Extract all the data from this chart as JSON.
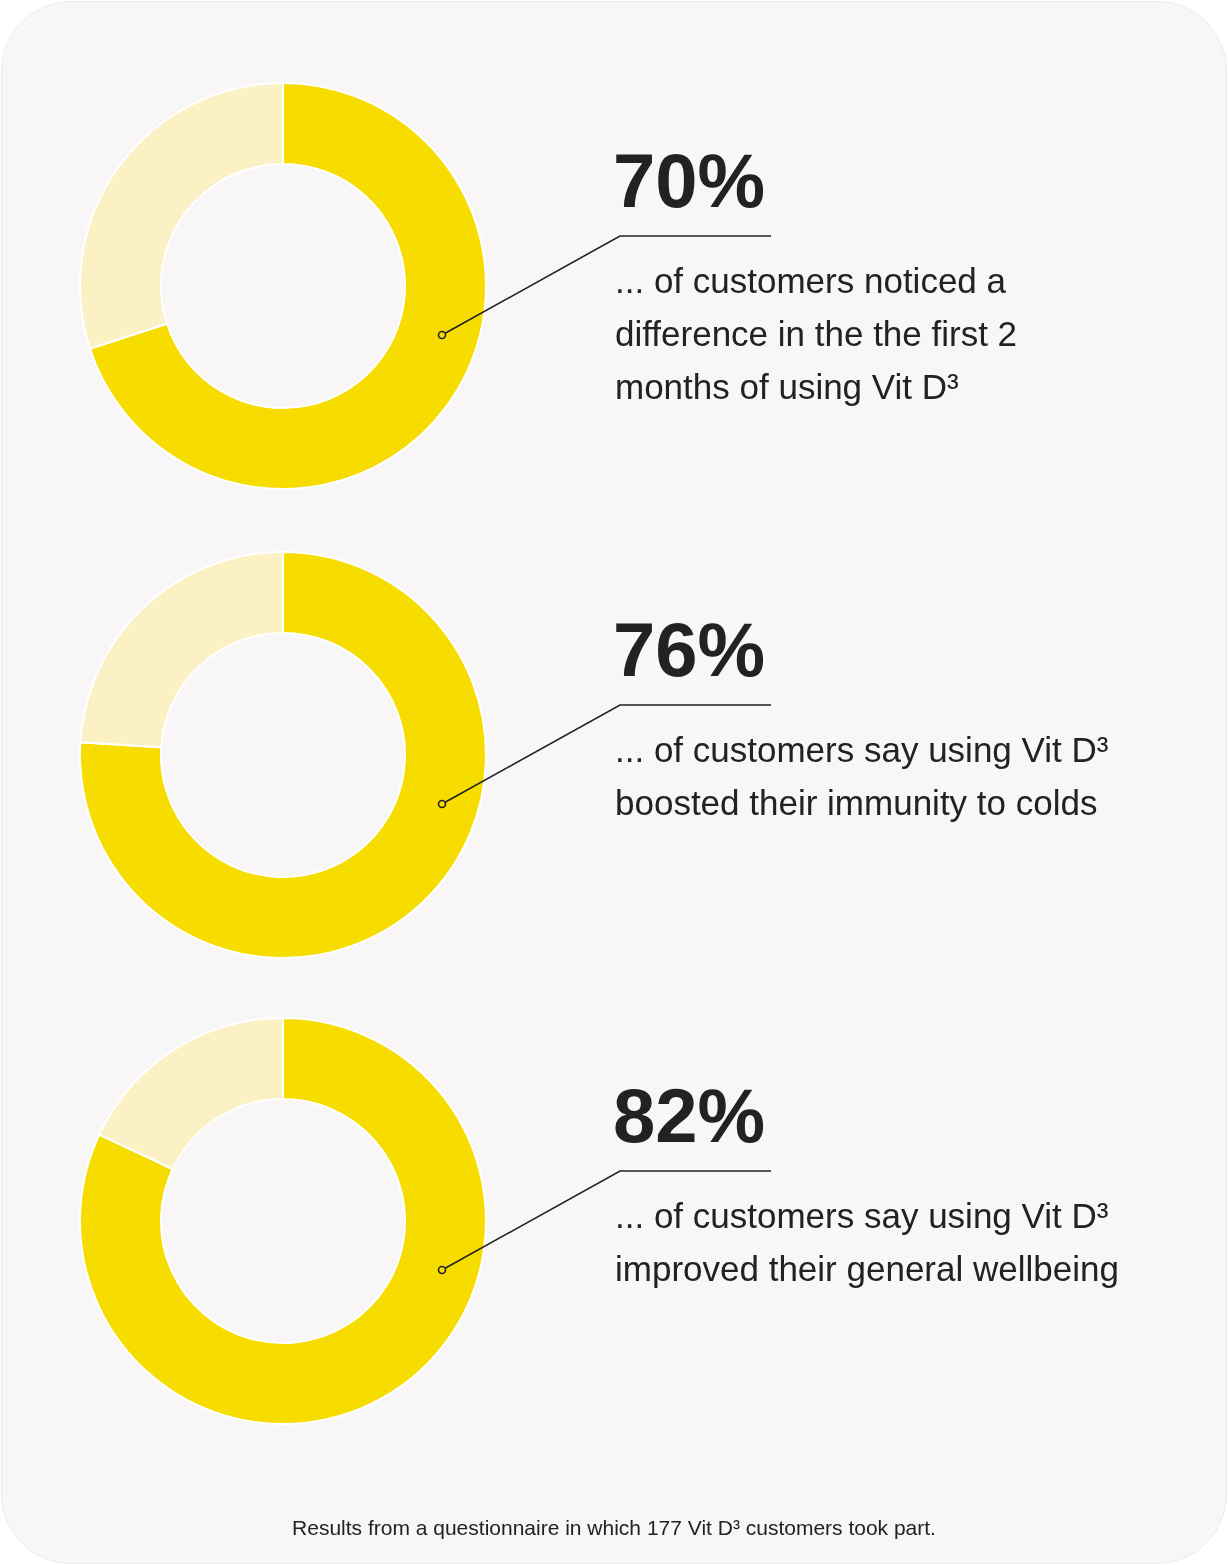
{
  "chart_data": [
    {
      "type": "donut",
      "title": "70%",
      "categories": [
        null,
        null
      ],
      "values": [
        70,
        30
      ],
      "colors": [
        "#f7dc00",
        "#fbf1c4"
      ],
      "annotations": [
        "... of customers noticed a difference in the the first 2 months of using Vit D³"
      ]
    },
    {
      "type": "donut",
      "title": "76%",
      "categories": [
        null,
        null
      ],
      "values": [
        76,
        24
      ],
      "colors": [
        "#f7dc00",
        "#fbf1c4"
      ],
      "annotations": [
        "... of customers say using Vit D³ boosted their immunity to colds"
      ]
    },
    {
      "type": "donut",
      "title": "82%",
      "categories": [
        null,
        null
      ],
      "values": [
        82,
        18
      ],
      "colors": [
        "#f7dc00",
        "#fbf1c4"
      ],
      "annotations": [
        "... of customers say using Vit D³ improved their general wellbeing",
        "Results from a questionnaire in which 177 Vit D³ customers took part."
      ]
    }
  ]
}
